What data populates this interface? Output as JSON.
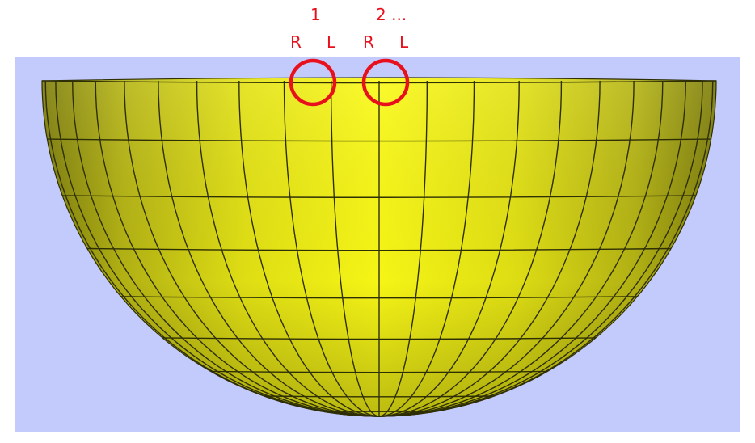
{
  "colors": {
    "background": "#ffffff",
    "viewport": "#c3cafc",
    "mesh_fill_light": "#fbfa14",
    "mesh_fill_dark": "#8c8c0c",
    "mesh_line": "#2f2f06",
    "annotation": "#e8101c"
  },
  "annotations": {
    "group1_number": "1",
    "group2_number": "2 ...",
    "g1_left": "R",
    "g1_right": "L",
    "g2_left": "R",
    "g2_right": "L"
  },
  "mesh": {
    "shape": "hemisphere-bowl",
    "columns": 22,
    "rows": 9
  }
}
